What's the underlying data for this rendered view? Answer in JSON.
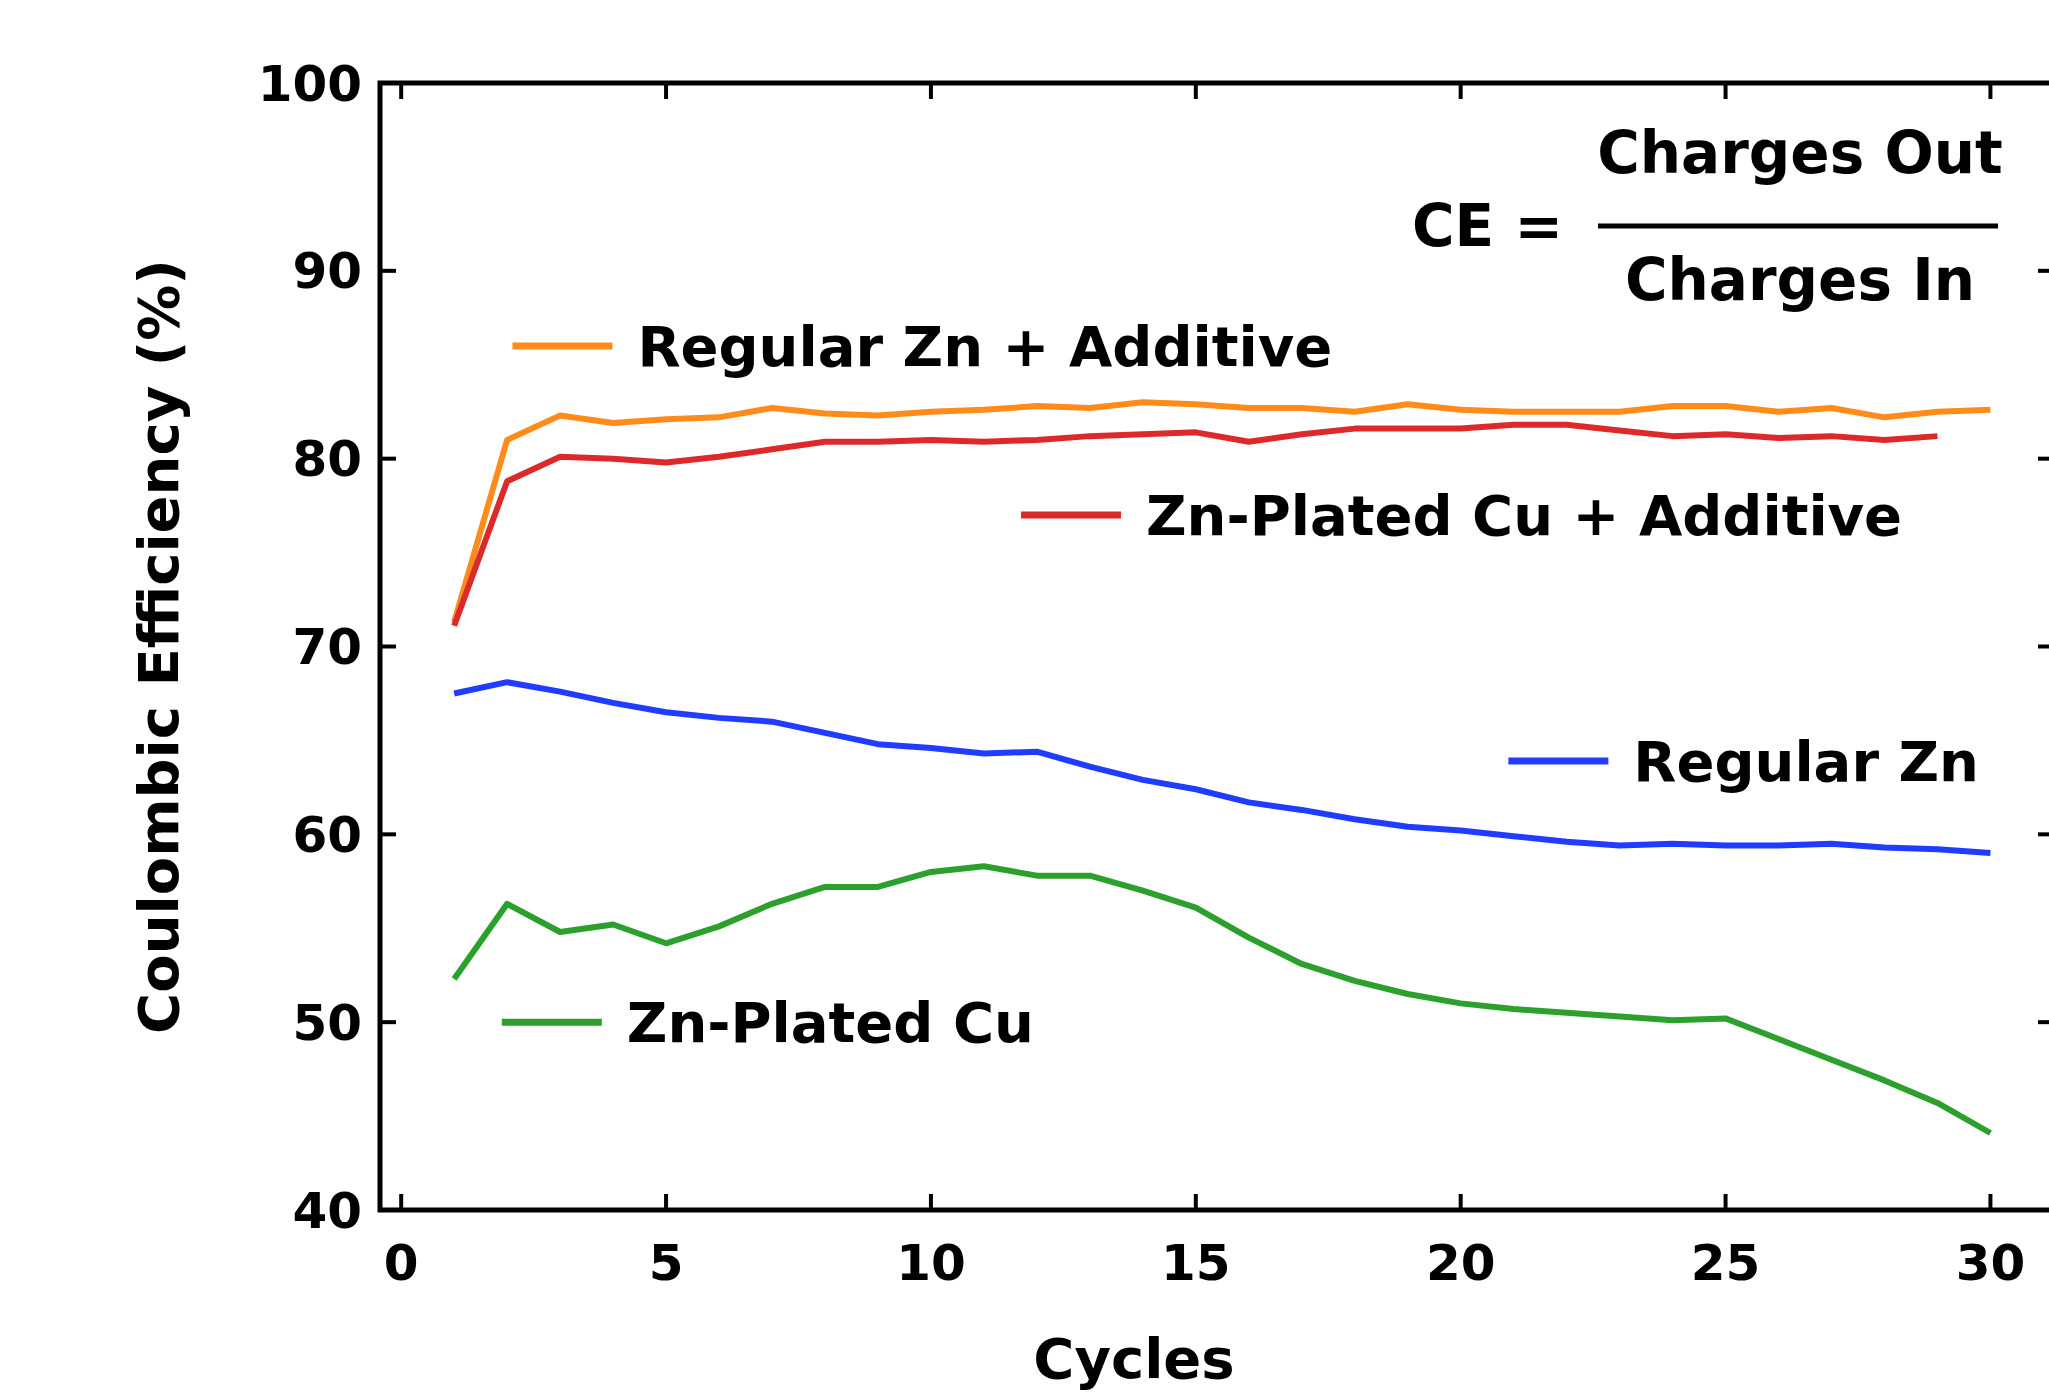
{
  "chart_data": {
    "type": "line",
    "xlabel": "Cycles",
    "ylabel": "Coulombic Efficiency (%)",
    "annotations": [
      "CE =",
      "Charges Out",
      "Charges In"
    ],
    "xlim": [
      -0.4,
      31.2
    ],
    "ylim": [
      40,
      100
    ],
    "xticks": [
      0,
      5,
      10,
      15,
      20,
      25,
      30
    ],
    "yticks": [
      40,
      50,
      60,
      70,
      80,
      90,
      100
    ],
    "grid": false,
    "legend": "bottom right",
    "line_style": "solid",
    "marker": "none",
    "x": [
      1,
      2,
      3,
      4,
      5,
      6,
      7,
      8,
      9,
      10,
      11,
      12,
      13,
      14,
      15,
      16,
      17,
      18,
      19,
      20,
      21,
      22,
      23,
      24,
      25,
      26,
      27,
      28,
      29,
      30
    ],
    "series": [
      {
        "name": "Regular Zn + Additive",
        "color": "#ff8c1a",
        "values": [
          71.3,
          81.0,
          82.3,
          81.9,
          82.1,
          82.2,
          82.7,
          82.4,
          82.3,
          82.5,
          82.6,
          82.8,
          82.7,
          83.0,
          82.9,
          82.7,
          82.7,
          82.5,
          82.9,
          82.6,
          82.5,
          82.5,
          82.5,
          82.8,
          82.8,
          82.5,
          82.7,
          82.2,
          82.5,
          82.6
        ]
      },
      {
        "name": "Zn-Plated Cu + Additive",
        "color": "#dc2a2a",
        "values": [
          71.1,
          78.8,
          80.1,
          80.0,
          79.8,
          80.1,
          80.5,
          80.9,
          80.9,
          81.0,
          80.9,
          81.0,
          81.2,
          81.3,
          81.4,
          80.9,
          81.3,
          81.6,
          81.6,
          81.6,
          81.8,
          81.8,
          81.5,
          81.2,
          81.3,
          81.1,
          81.2,
          81.0,
          81.2,
          null
        ]
      },
      {
        "name": "Regular Zn",
        "color": "#1f3cff",
        "values": [
          67.5,
          68.1,
          67.6,
          67.0,
          66.5,
          66.2,
          66.0,
          65.4,
          64.8,
          64.6,
          64.3,
          64.4,
          63.6,
          62.9,
          62.4,
          61.7,
          61.3,
          60.8,
          60.4,
          60.2,
          59.9,
          59.6,
          59.4,
          59.5,
          59.4,
          59.4,
          59.5,
          59.3,
          59.2,
          59.0
        ]
      },
      {
        "name": "Zn-Plated Cu",
        "color": "#2ca02c",
        "values": [
          52.3,
          56.3,
          54.8,
          55.2,
          54.2,
          55.1,
          56.3,
          57.2,
          57.2,
          58.0,
          58.3,
          57.8,
          57.8,
          57.0,
          56.1,
          54.5,
          53.1,
          52.2,
          51.5,
          51.0,
          50.7,
          50.5,
          50.3,
          50.1,
          50.2,
          49.1,
          48.0,
          46.9,
          45.7,
          44.1
        ]
      }
    ]
  }
}
